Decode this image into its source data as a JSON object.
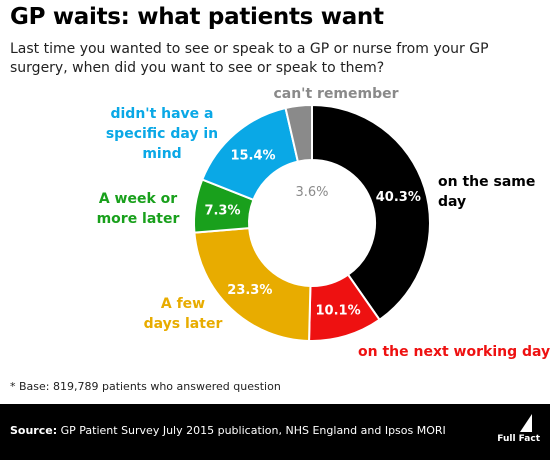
{
  "header": {
    "title": "GP waits: what patients want",
    "subtitle": "Last time you wanted to see or speak to a GP or nurse from your GP surgery, when did you want to see or speak to them?"
  },
  "chart_data": {
    "type": "pie",
    "donut": true,
    "title": "GP waits: what patients want",
    "slices": [
      {
        "label": "on the same day",
        "value": 40.3,
        "value_label": "40.3%",
        "color": "#000000",
        "label_color": "#000000",
        "value_text_color": "#ffffff"
      },
      {
        "label": "on the next working day",
        "value": 10.1,
        "value_label": "10.1%",
        "color": "#ee1111",
        "label_color": "#ee1111",
        "value_text_color": "#ffffff"
      },
      {
        "label": "A few days later",
        "value": 23.3,
        "value_label": "23.3%",
        "color": "#e8ac00",
        "label_color": "#e8ac00",
        "value_text_color": "#ffffff"
      },
      {
        "label": "A week or more later",
        "value": 7.3,
        "value_label": "7.3%",
        "color": "#19a01c",
        "label_color": "#19a01c",
        "value_text_color": "#ffffff"
      },
      {
        "label": "didn't have a specific day in mind",
        "value": 15.4,
        "value_label": "15.4%",
        "color": "#0aa8e6",
        "label_color": "#0aa8e6",
        "value_text_color": "#ffffff"
      },
      {
        "label": "can't remember",
        "value": 3.6,
        "value_label": "3.6%",
        "color": "#8a8a8a",
        "label_color": "#8a8a8a",
        "value_text_color": "#8a8a8a"
      }
    ]
  },
  "footnote": "* Base: 819,789 patients who answered question",
  "footer": {
    "source_label": "Source:",
    "source_text": " GP Patient Survey July 2015 publication, NHS England and Ipsos MORI",
    "brand": "Full Fact"
  }
}
